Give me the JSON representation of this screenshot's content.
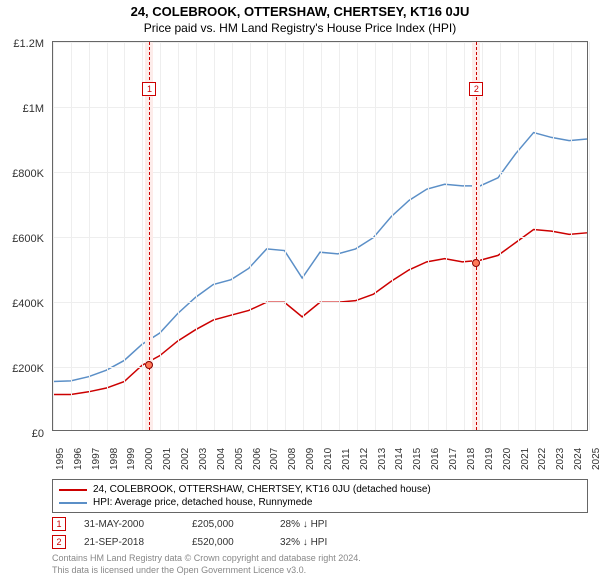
{
  "title": "24, COLEBROOK, OTTERSHAW, CHERTSEY, KT16 0JU",
  "subtitle": "Price paid vs. HM Land Registry's House Price Index (HPI)",
  "chart": {
    "type": "line",
    "background_color": "#ffffff",
    "grid_color": "#eeeeee",
    "border_color": "#666666",
    "ylim": [
      0,
      1200000
    ],
    "ytick_step": 200000,
    "yticks": [
      "£0",
      "£200K",
      "£400K",
      "£600K",
      "£800K",
      "£1M",
      "£1.2M"
    ],
    "xlim": [
      1995,
      2025
    ],
    "xticks": [
      1995,
      1996,
      1997,
      1998,
      1999,
      2000,
      2001,
      2002,
      2003,
      2004,
      2005,
      2006,
      2007,
      2008,
      2009,
      2010,
      2011,
      2012,
      2013,
      2014,
      2015,
      2016,
      2017,
      2018,
      2019,
      2020,
      2021,
      2022,
      2023,
      2024,
      2025
    ],
    "label_fontsize": 11,
    "tick_fontsize": 10,
    "series": [
      {
        "name": "price_paid",
        "label": "24, COLEBROOK, OTTERSHAW, CHERTSEY, KT16 0JU (detached house)",
        "color": "#cc0000",
        "line_width": 1.5,
        "points": [
          [
            1995,
            110000
          ],
          [
            1996,
            110000
          ],
          [
            1997,
            118000
          ],
          [
            1998,
            130000
          ],
          [
            1999,
            150000
          ],
          [
            2000,
            200000
          ],
          [
            2001,
            230000
          ],
          [
            2002,
            275000
          ],
          [
            2003,
            310000
          ],
          [
            2004,
            340000
          ],
          [
            2005,
            355000
          ],
          [
            2006,
            370000
          ],
          [
            2007,
            395000
          ],
          [
            2008,
            395000
          ],
          [
            2009,
            350000
          ],
          [
            2010,
            395000
          ],
          [
            2011,
            395000
          ],
          [
            2012,
            400000
          ],
          [
            2013,
            420000
          ],
          [
            2014,
            460000
          ],
          [
            2015,
            495000
          ],
          [
            2016,
            520000
          ],
          [
            2017,
            530000
          ],
          [
            2018,
            520000
          ],
          [
            2019,
            525000
          ],
          [
            2020,
            540000
          ],
          [
            2021,
            580000
          ],
          [
            2022,
            620000
          ],
          [
            2023,
            615000
          ],
          [
            2024,
            605000
          ],
          [
            2025,
            610000
          ]
        ]
      },
      {
        "name": "hpi",
        "label": "HPI: Average price, detached house, Runnymede",
        "color": "#5b8fc7",
        "line_width": 1.5,
        "points": [
          [
            1995,
            150000
          ],
          [
            1996,
            152000
          ],
          [
            1997,
            165000
          ],
          [
            1998,
            185000
          ],
          [
            1999,
            215000
          ],
          [
            2000,
            265000
          ],
          [
            2001,
            300000
          ],
          [
            2002,
            360000
          ],
          [
            2003,
            410000
          ],
          [
            2004,
            450000
          ],
          [
            2005,
            465000
          ],
          [
            2006,
            500000
          ],
          [
            2007,
            560000
          ],
          [
            2008,
            555000
          ],
          [
            2009,
            470000
          ],
          [
            2010,
            550000
          ],
          [
            2011,
            545000
          ],
          [
            2012,
            560000
          ],
          [
            2013,
            595000
          ],
          [
            2014,
            660000
          ],
          [
            2015,
            710000
          ],
          [
            2016,
            745000
          ],
          [
            2017,
            760000
          ],
          [
            2018,
            755000
          ],
          [
            2019,
            755000
          ],
          [
            2020,
            780000
          ],
          [
            2021,
            855000
          ],
          [
            2022,
            920000
          ],
          [
            2023,
            905000
          ],
          [
            2024,
            895000
          ],
          [
            2025,
            900000
          ]
        ]
      }
    ],
    "markers": [
      {
        "id": "1",
        "date": "31-MAY-2000",
        "x": 2000.4,
        "price": "£205,000",
        "price_val": 205000,
        "pct": "28% ↓ HPI",
        "band_color": "#fdecea",
        "dot_color": "#ff7a59"
      },
      {
        "id": "2",
        "date": "21-SEP-2018",
        "x": 2018.7,
        "price": "£520,000",
        "price_val": 520000,
        "pct": "32% ↓ HPI",
        "band_color": "#fdecea",
        "dot_color": "#ff7a59"
      }
    ]
  },
  "legend": [
    {
      "color": "#cc0000",
      "label": "24, COLEBROOK, OTTERSHAW, CHERTSEY, KT16 0JU (detached house)"
    },
    {
      "color": "#5b8fc7",
      "label": "HPI: Average price, detached house, Runnymede"
    }
  ],
  "footer": {
    "line1": "Contains HM Land Registry data © Crown copyright and database right 2024.",
    "line2": "This data is licensed under the Open Government Licence v3.0."
  }
}
